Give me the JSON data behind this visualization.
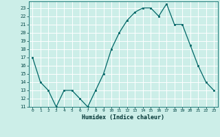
{
  "x": [
    0,
    1,
    2,
    3,
    4,
    5,
    6,
    7,
    8,
    9,
    10,
    11,
    12,
    13,
    14,
    15,
    16,
    17,
    18,
    19,
    20,
    21,
    22,
    23
  ],
  "y": [
    17,
    14,
    13,
    11,
    13,
    13,
    12,
    11,
    13,
    15,
    18,
    20,
    21.5,
    22.5,
    23,
    23,
    22,
    23.5,
    21,
    21,
    18.5,
    16,
    14,
    13
  ],
  "xlabel": "Humidex (Indice chaleur)",
  "line_color": "#006666",
  "marker_color": "#006666",
  "bg_color": "#cceee8",
  "grid_color": "#ffffff",
  "grid_minor_color": "#ddf5f0",
  "ylim": [
    11,
    23.8
  ],
  "xlim": [
    -0.5,
    23.5
  ],
  "yticks": [
    11,
    12,
    13,
    14,
    15,
    16,
    17,
    18,
    19,
    20,
    21,
    22,
    23
  ],
  "xticks": [
    0,
    1,
    2,
    3,
    4,
    5,
    6,
    7,
    8,
    9,
    10,
    11,
    12,
    13,
    14,
    15,
    16,
    17,
    18,
    19,
    20,
    21,
    22,
    23
  ]
}
